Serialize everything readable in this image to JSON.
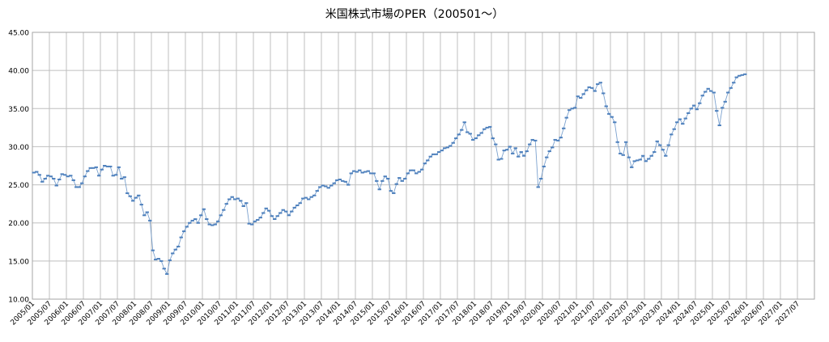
{
  "chart_data": {
    "type": "line",
    "title": "米国株式市場のPER（200501～）",
    "xlabel": "",
    "ylabel": "",
    "ylim": [
      10,
      45
    ],
    "yticks": [
      10,
      15,
      20,
      25,
      30,
      35,
      40,
      45
    ],
    "ytick_labels": [
      "10.00",
      "15.00",
      "20.00",
      "25.00",
      "30.00",
      "35.00",
      "40.00",
      "45.00"
    ],
    "xticks": [
      "2005/01",
      "2005/07",
      "2006/01",
      "2006/07",
      "2007/01",
      "2007/07",
      "2008/01",
      "2008/07",
      "2009/01",
      "2009/07",
      "2010/01",
      "2010/07",
      "2011/01",
      "2011/07",
      "2012/01",
      "2012/07",
      "2013/01",
      "2013/07",
      "2014/01",
      "2014/07",
      "2015/01",
      "2015/07",
      "2016/01",
      "2016/07",
      "2017/01",
      "2017/07",
      "2018/01",
      "2018/07",
      "2019/01",
      "2019/07",
      "2020/01",
      "2020/07",
      "2021/01",
      "2021/07",
      "2022/01",
      "2022/07",
      "2023/01",
      "2023/07",
      "2024/01",
      "2024/07",
      "2025/01",
      "2025/07",
      "2026/01",
      "2026/07",
      "2027/01",
      "2027/07"
    ],
    "x_start": "2005/01",
    "x_step": "month",
    "grid": true,
    "legend": "none",
    "series": [
      {
        "color": "#4f81bd",
        "values": [
          26.6,
          26.7,
          26.3,
          25.4,
          25.8,
          26.2,
          26.1,
          25.8,
          24.9,
          25.7,
          26.4,
          26.3,
          26.1,
          26.2,
          25.6,
          24.7,
          24.7,
          25.2,
          26.1,
          26.8,
          27.2,
          27.2,
          27.3,
          26.2,
          27.0,
          27.5,
          27.4,
          27.4,
          26.2,
          26.3,
          27.3,
          25.8,
          26.0,
          23.9,
          23.5,
          22.9,
          23.3,
          23.6,
          22.4,
          21.0,
          21.4,
          20.3,
          16.4,
          15.2,
          15.3,
          15.0,
          14.0,
          13.3,
          15.1,
          16.0,
          16.5,
          16.9,
          18.1,
          18.9,
          19.5,
          20.0,
          20.3,
          20.5,
          20.0,
          21.0,
          21.8,
          20.5,
          19.8,
          19.7,
          19.8,
          20.2,
          21.0,
          21.7,
          22.5,
          23.1,
          23.4,
          23.1,
          23.2,
          22.9,
          22.2,
          22.6,
          19.9,
          19.8,
          20.2,
          20.4,
          20.7,
          21.3,
          21.9,
          21.6,
          20.9,
          20.5,
          20.9,
          21.3,
          21.7,
          21.5,
          21.0,
          21.5,
          22.0,
          22.3,
          22.6,
          23.2,
          23.3,
          23.1,
          23.4,
          23.6,
          24.2,
          24.7,
          24.9,
          24.8,
          24.6,
          24.9,
          25.2,
          25.6,
          25.7,
          25.5,
          25.4,
          25.0,
          26.5,
          26.8,
          26.7,
          26.9,
          26.6,
          26.7,
          26.8,
          26.5,
          26.5,
          25.5,
          24.4,
          25.5,
          26.1,
          25.8,
          24.2,
          23.9,
          25.1,
          25.9,
          25.5,
          25.8,
          26.5,
          26.9,
          26.9,
          26.5,
          26.7,
          27.0,
          27.8,
          28.2,
          28.7,
          29.0,
          29.0,
          29.3,
          29.5,
          29.8,
          29.9,
          30.1,
          30.5,
          31.1,
          31.6,
          32.2,
          33.2,
          31.9,
          31.7,
          30.9,
          31.1,
          31.5,
          31.8,
          32.3,
          32.5,
          32.6,
          31.1,
          30.3,
          28.3,
          28.4,
          29.5,
          29.6,
          30.0,
          29.1,
          29.8,
          28.7,
          29.3,
          28.8,
          29.4,
          30.3,
          30.9,
          30.8,
          24.7,
          25.8,
          27.4,
          28.6,
          29.4,
          29.9,
          30.9,
          30.8,
          31.2,
          32.4,
          33.8,
          34.8,
          35.0,
          35.1,
          36.6,
          36.4,
          36.9,
          37.4,
          37.8,
          37.7,
          37.3,
          38.2,
          38.4,
          37.0,
          35.3,
          34.3,
          33.9,
          33.2,
          30.6,
          29.1,
          28.9,
          30.6,
          28.6,
          27.3,
          28.1,
          28.2,
          28.3,
          28.8,
          28.1,
          28.4,
          28.8,
          29.3,
          30.7,
          30.2,
          29.6,
          28.8,
          30.2,
          31.6,
          32.3,
          33.2,
          33.6,
          33.0,
          33.7,
          34.4,
          35.0,
          35.4,
          34.9,
          35.7,
          36.7,
          37.2,
          37.6,
          37.3,
          37.1,
          34.7,
          32.8,
          35.1,
          35.9,
          37.1,
          37.7,
          38.4,
          39.1,
          39.3,
          39.4,
          39.5
        ]
      }
    ]
  }
}
